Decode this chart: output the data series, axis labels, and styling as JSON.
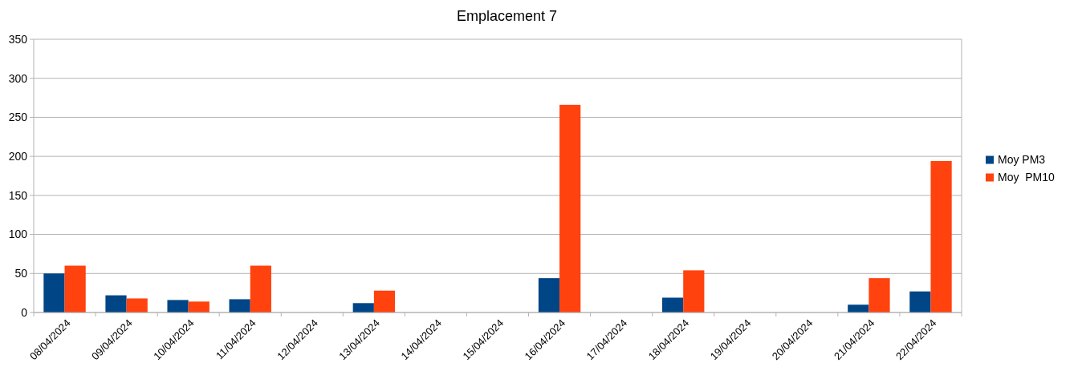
{
  "chart_data": {
    "type": "bar",
    "title": "Emplacement 7",
    "categories": [
      "08/04/2024",
      "09/04/2024",
      "10/04/2024",
      "11/04/2024",
      "12/04/2024",
      "13/04/2024",
      "14/04/2024",
      "15/04/2024",
      "16/04/2024",
      "17/04/2024",
      "18/04/2024",
      "19/04/2024",
      "20/04/2024",
      "21/04/2024",
      "22/04/2024"
    ],
    "series": [
      {
        "name": "Moy PM3",
        "color": "#004586",
        "values": [
          50,
          22,
          16,
          17,
          null,
          12,
          null,
          null,
          44,
          null,
          19,
          null,
          null,
          10,
          27
        ]
      },
      {
        "name": "Moy  PM10",
        "color": "#ff420e",
        "values": [
          60,
          18,
          14,
          60,
          null,
          28,
          null,
          null,
          266,
          null,
          54,
          null,
          null,
          44,
          194
        ]
      }
    ],
    "ylim": [
      0,
      350
    ],
    "yticks": [
      0,
      50,
      100,
      150,
      200,
      250,
      300,
      350
    ],
    "grid": "y",
    "legend": "right"
  }
}
